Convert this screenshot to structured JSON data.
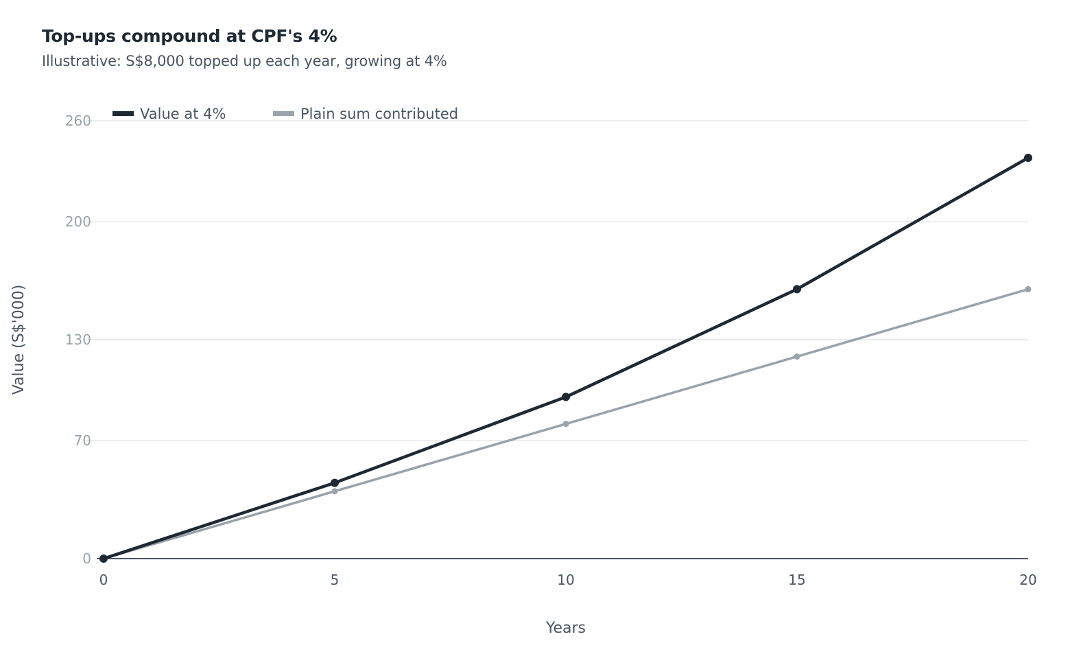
{
  "chart_data": {
    "type": "line",
    "title": "Top-ups compound at CPF's 4%",
    "subtitle": "Illustrative: S$8,000 topped up each year, growing at 4%",
    "xlabel": "Years",
    "ylabel": "Value (S$'000)",
    "x": [
      0,
      5,
      10,
      15,
      20
    ],
    "x_ticks": [
      "0",
      "5",
      "10",
      "15",
      "20"
    ],
    "y_ticks": [
      "0",
      "70",
      "130",
      "200",
      "260"
    ],
    "y_tick_values": [
      0,
      70,
      130,
      200,
      260
    ],
    "xlim": [
      0,
      20
    ],
    "ylim": [
      0,
      260
    ],
    "grid": true,
    "legend_position": "top-left",
    "series": [
      {
        "name": "Value at 4%",
        "color": "#1f2933",
        "values": [
          0,
          45,
          96,
          160,
          238
        ]
      },
      {
        "name": "Plain sum contributed",
        "color": "#9aa2ab",
        "values": [
          0,
          40,
          80,
          120,
          160
        ]
      }
    ]
  }
}
